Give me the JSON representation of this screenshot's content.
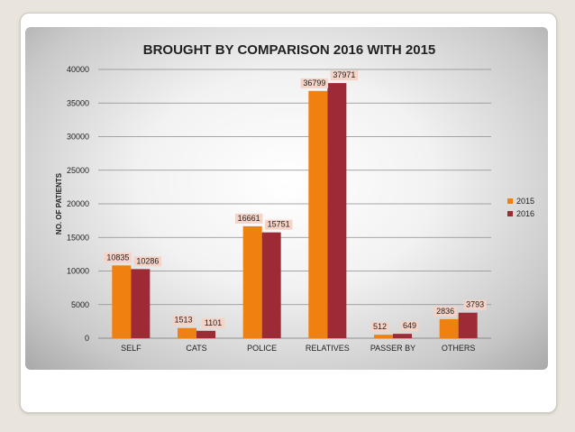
{
  "chart_data": {
    "type": "bar",
    "title": "BROUGHT BY COMPARISON 2016 WITH 2015",
    "xlabel": "",
    "ylabel": "NO. OF PATIENTS",
    "categories": [
      "SELF",
      "CATS",
      "POLICE",
      "RELATIVES",
      "PASSER BY",
      "OTHERS"
    ],
    "series": [
      {
        "name": "2015",
        "color": "#f08010",
        "values": [
          10835,
          1513,
          16661,
          36799,
          512,
          2836
        ]
      },
      {
        "name": "2016",
        "color": "#9e2a36",
        "values": [
          10286,
          1101,
          15751,
          37971,
          649,
          3793
        ]
      }
    ],
    "ylim": [
      0,
      40000
    ],
    "yticks": [
      0,
      5000,
      10000,
      15000,
      20000,
      25000,
      30000,
      35000,
      40000
    ],
    "grid": true,
    "legend_position": "right",
    "data_label_bg": "#f6d3c7"
  }
}
